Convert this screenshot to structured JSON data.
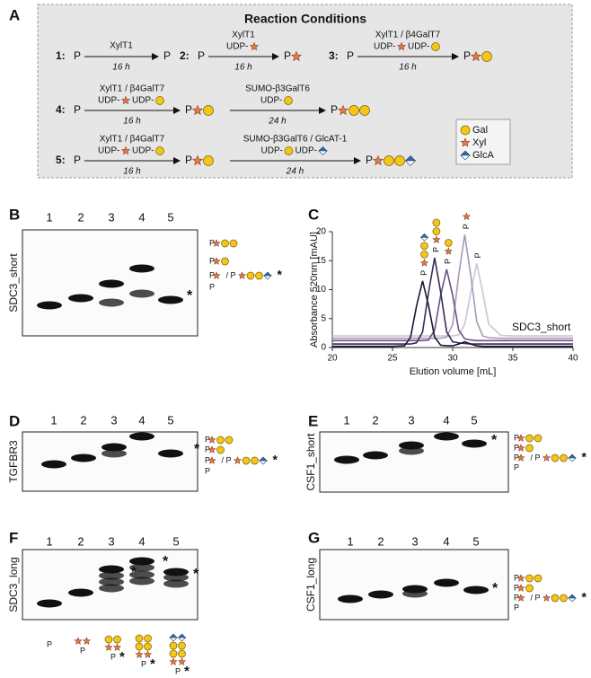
{
  "panel_a": {
    "label": "A",
    "title": "Reaction Conditions",
    "reactions": [
      {
        "number": "1:",
        "substrate": "P",
        "steps": [
          {
            "enzymes": "XylT1",
            "donors": [],
            "time": "16 h",
            "product": "P"
          }
        ]
      },
      {
        "number": "2:",
        "substrate": "P",
        "steps": [
          {
            "enzymes": "XylT1",
            "donors": [
              "UDP-"
            ],
            "time": "16 h",
            "product": "P"
          }
        ]
      },
      {
        "number": "3:",
        "substrate": "P",
        "steps": [
          {
            "enzymes": "XylT1 / β4GalT7",
            "donors": [
              "UDP-",
              "UDP-"
            ],
            "time": "16 h",
            "product": "P"
          }
        ]
      },
      {
        "number": "4:",
        "substrate": "P",
        "steps": [
          {
            "enzymes": "XylT1 / β4GalT7",
            "donors": [
              "UDP-",
              "UDP-"
            ],
            "time": "16 h",
            "product": "P"
          },
          {
            "enzymes": "SUMO-β3GalT6",
            "donors": [
              "UDP-"
            ],
            "time": "24 h",
            "product": "P"
          }
        ]
      },
      {
        "number": "5:",
        "substrate": "P",
        "steps": [
          {
            "enzymes": "XylT1 / β4GalT7",
            "donors": [
              "UDP-",
              "UDP-"
            ],
            "time": "16 h",
            "product": "P"
          },
          {
            "enzymes": "SUMO-β3GalT6 / GlcAT-1",
            "donors": [
              "UDP-",
              "UDP-"
            ],
            "time": "24 h",
            "product": "P"
          }
        ]
      }
    ],
    "legend": [
      "Gal",
      "Xyl",
      "GlcA"
    ]
  },
  "gels": [
    {
      "label": "B",
      "sample": "SDC3_short",
      "lanes": [
        "1",
        "2",
        "3",
        "4",
        "5"
      ],
      "band_marks": [
        "*"
      ],
      "annotations": [
        [
          "P"
        ],
        [
          "P"
        ],
        [
          "P",
          "/ P",
          "*"
        ],
        [
          "P"
        ]
      ]
    },
    {
      "label": "D",
      "sample": "TGFBR3",
      "lanes": [
        "1",
        "2",
        "3",
        "4",
        "5"
      ],
      "band_marks": [
        "*"
      ],
      "annotations": [
        [
          "P"
        ],
        [
          "P"
        ],
        [
          "P",
          "/ P",
          "*"
        ],
        [
          "P"
        ]
      ]
    },
    {
      "label": "E",
      "sample": "CSF1_short",
      "lanes": [
        "1",
        "2",
        "3",
        "4",
        "5"
      ],
      "band_marks": [
        "*"
      ],
      "annotations": [
        [
          "P"
        ],
        [
          "P"
        ],
        [
          "P",
          "/ P",
          "*"
        ],
        [
          "P"
        ]
      ]
    },
    {
      "label": "F",
      "sample": "SDC3_long",
      "lanes": [
        "1",
        "2",
        "3",
        "4",
        "5"
      ],
      "band_marks": [
        "*",
        "*",
        "*"
      ],
      "lane_labels": [
        "P",
        "P",
        "P",
        "P",
        "P"
      ],
      "lane_marks": [
        "*",
        "*",
        "*"
      ]
    },
    {
      "label": "G",
      "sample": "CSF1_long",
      "lanes": [
        "1",
        "2",
        "3",
        "4",
        "5"
      ],
      "band_marks": [
        "*"
      ],
      "annotations": [
        [
          "P"
        ],
        [
          "P"
        ],
        [
          "P",
          "/ P",
          "*"
        ],
        [
          "P"
        ]
      ]
    }
  ],
  "chart_data": {
    "type": "line",
    "panel_label": "C",
    "xlabel": "Elution volume [mL]",
    "ylabel": "Absorbance 520nm [mAU]",
    "annotation": "SDC3_short",
    "peak_labels": [
      "P",
      "P",
      "P",
      "P",
      "P"
    ],
    "x": [
      20,
      25,
      26,
      26.5,
      27,
      27.5,
      28,
      28.5,
      29,
      29.5,
      30,
      30.5,
      31,
      31.5,
      32,
      32.5,
      33,
      34,
      35,
      40
    ],
    "series": [
      {
        "color": "#1c1733",
        "values": [
          0.2,
          0.2,
          0.3,
          1.8,
          7.2,
          11.5,
          7.2,
          1.8,
          0.4,
          0.3,
          0.3,
          0.6,
          1,
          0.6,
          0.3,
          0.2,
          0.2,
          0.2,
          0.2,
          0.2
        ]
      },
      {
        "color": "#3a2b57",
        "values": [
          0.6,
          0.6,
          0.6,
          0.6,
          0.8,
          2.7,
          9.6,
          15.5,
          9.6,
          2.7,
          1,
          0.8,
          0.7,
          0.6,
          0.6,
          0.6,
          0.6,
          0.6,
          0.6,
          0.6
        ]
      },
      {
        "color": "#6b5285",
        "values": [
          1.2,
          1.2,
          1.2,
          1.2,
          1.2,
          1.2,
          1.3,
          3,
          9,
          13.5,
          9,
          3,
          1.5,
          1.3,
          1.2,
          1.2,
          1.2,
          1.2,
          1.2,
          1.2
        ]
      },
      {
        "color": "#a898b5",
        "values": [
          1.6,
          1.6,
          1.6,
          1.6,
          1.6,
          1.6,
          1.6,
          1.6,
          1.6,
          1.8,
          4,
          12.5,
          19.5,
          12.5,
          4.5,
          2,
          1.7,
          1.6,
          1.6,
          1.6
        ]
      },
      {
        "color": "#cfc4d3",
        "values": [
          2,
          2,
          2,
          2,
          2,
          2,
          2,
          2,
          2,
          2,
          2,
          2.2,
          4,
          9.5,
          14.5,
          9.5,
          4,
          2.1,
          2,
          2
        ]
      }
    ],
    "xlim": [
      20,
      40
    ],
    "ylim": [
      0,
      20
    ],
    "xticks": [
      20,
      25,
      30,
      35,
      40
    ],
    "yticks": [
      0,
      5,
      10,
      15,
      20
    ]
  }
}
